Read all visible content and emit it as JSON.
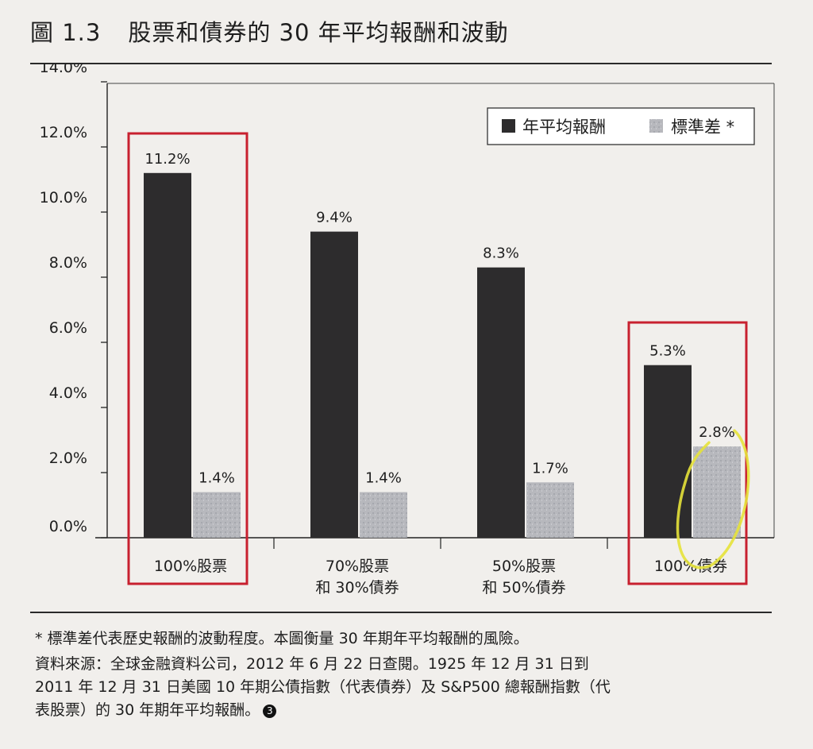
{
  "title": {
    "figure_no": "圖 1.3",
    "text": "股票和債券的 30 年平均報酬和波動"
  },
  "chart_data": {
    "type": "bar",
    "categories": [
      [
        "100%股票"
      ],
      [
        "70%股票",
        "和 30%債券"
      ],
      [
        "50%股票",
        "和 50%債券"
      ],
      [
        "100%債券"
      ]
    ],
    "series": [
      {
        "name": "年平均報酬",
        "values": [
          11.2,
          9.4,
          8.3,
          5.3
        ],
        "labels": [
          "11.2%",
          "9.4%",
          "8.3%",
          "5.3%"
        ],
        "color": "#2d2c2d"
      },
      {
        "name": "標準差 *",
        "values": [
          1.4,
          1.4,
          1.7,
          2.8
        ],
        "labels": [
          "1.4%",
          "1.4%",
          "1.7%",
          "2.8%"
        ],
        "color": "#b7b8bd"
      }
    ],
    "y_ticks": [
      "0.0%",
      "2.0%",
      "4.0%",
      "6.0%",
      "8.0%",
      "10.0%",
      "12.0%",
      "14.0%"
    ],
    "ylim": [
      0,
      14
    ],
    "legend_position": "top-right",
    "highlight_boxes": [
      "100%股票",
      "100%債券"
    ],
    "highlight_color": "#c8202f",
    "marker_circle": "2.8%",
    "marker_color": "#e6e23a"
  },
  "notes": {
    "footnote": "* 標準差代表歷史報酬的波動程度。本圖衡量 30 年期年平均報酬的風險。",
    "source": "資料來源：全球金融資料公司，2012 年 6 月 22 日查閱。1925 年 12 月 31 日到\n2011 年 12 月 31 日美國 10 年期公債指數（代表債券）及 S&P500 總報酬指數（代\n表股票）的 30 年期年平均報酬。",
    "badge": "3"
  }
}
